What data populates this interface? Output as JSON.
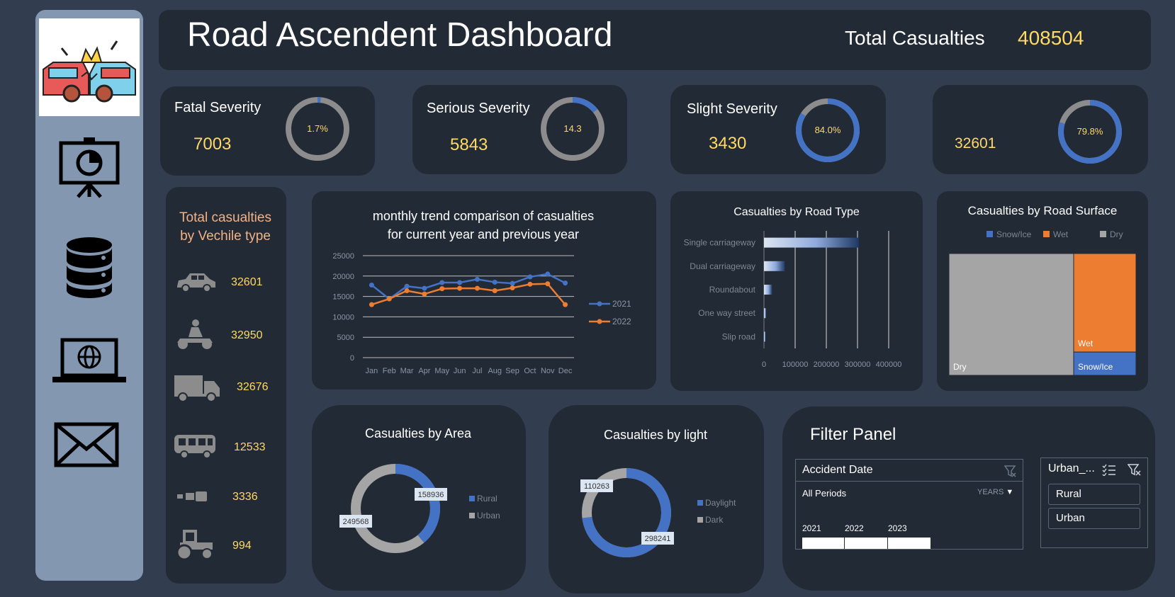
{
  "header": {
    "title": "Road Ascendent Dashboard",
    "total_label": "Total Casualties",
    "total_value": "408504"
  },
  "sidebar": {
    "icons": [
      "car-crash-logo-icon",
      "presentation-chart-icon",
      "database-icon",
      "laptop-globe-icon",
      "mail-icon"
    ]
  },
  "kpis": [
    {
      "label": "Fatal Severity",
      "value": "7003",
      "pct_label": "1.7%",
      "pct": 1.7
    },
    {
      "label": "Serious Severity",
      "value": "5843",
      "pct_label": "14.3",
      "pct": 14.3
    },
    {
      "label": "Slight Severity",
      "value": "3430",
      "pct_label": "84.0%",
      "pct": 84.0
    },
    {
      "label": "",
      "value": "32601",
      "pct_label": "79.8%",
      "pct": 79.8
    }
  ],
  "vehicles": {
    "title_line1": "Total casualties",
    "title_line2": "by Vechile type",
    "items": [
      {
        "icon": "car-icon",
        "value": "32601"
      },
      {
        "icon": "motorcycle-icon",
        "value": "32950"
      },
      {
        "icon": "truck-icon",
        "value": "32676"
      },
      {
        "icon": "bus-icon",
        "value": "12533"
      },
      {
        "icon": "other-vehicle-icon",
        "value": "3336"
      },
      {
        "icon": "tractor-icon",
        "value": "994"
      }
    ]
  },
  "colors": {
    "blue": "#4472c4",
    "orange": "#ed7d31",
    "grey": "#a5a5a5",
    "gold": "#ffd966"
  },
  "chart_data": [
    {
      "type": "line",
      "title_line1": "monthly trend comparison of casualties",
      "title_line2": "for current year and previous year",
      "categories": [
        "Jan",
        "Feb",
        "Mar",
        "Apr",
        "May",
        "Jun",
        "Jul",
        "Aug",
        "Sep",
        "Oct",
        "Nov",
        "Dec"
      ],
      "ylim": [
        0,
        25000
      ],
      "yticks": [
        0,
        5000,
        10000,
        15000,
        20000,
        25000
      ],
      "ytick_labels": [
        "0",
        "5000",
        "10000",
        "15000",
        "20000",
        "25000"
      ],
      "legend_position": "right",
      "series": [
        {
          "name": "2021",
          "color": "#4472c4",
          "values": [
            17800,
            14400,
            17500,
            17000,
            18400,
            18400,
            19200,
            18500,
            18200,
            19800,
            20500,
            18300
          ]
        },
        {
          "name": "2022",
          "color": "#ed7d31",
          "values": [
            13000,
            14400,
            16400,
            15600,
            16900,
            17000,
            17000,
            16400,
            17100,
            18000,
            18100,
            13000
          ]
        }
      ]
    },
    {
      "type": "bar",
      "orientation": "horizontal",
      "title": "Casualties by Road Type",
      "categories": [
        "Single carriageway",
        "Dual carriageway",
        "Roundabout",
        "One way street",
        "Slip road"
      ],
      "values": [
        304000,
        67000,
        26000,
        7000,
        5000
      ],
      "xlim": [
        0,
        400000
      ],
      "xticks": [
        0,
        100000,
        200000,
        300000,
        400000
      ],
      "xtick_labels": [
        "0",
        "100000",
        "200000",
        "300000",
        "400000"
      ]
    },
    {
      "type": "treemap",
      "title": "Casualties by Road Surface",
      "legend": [
        "Snow/Ice",
        "Wet",
        "Dry"
      ],
      "legend_colors": [
        "#4472c4",
        "#ed7d31",
        "#a5a5a5"
      ],
      "labels": [
        "Dry",
        "Wet",
        "Snow/Ice"
      ],
      "values": [
        272000,
        110000,
        26000
      ]
    },
    {
      "type": "pie",
      "title": "Casualties by Area",
      "labels": [
        "Rural",
        "Urban"
      ],
      "values": [
        158936,
        249568
      ],
      "value_labels": [
        "158936",
        "249568"
      ],
      "colors": [
        "#4472c4",
        "#a5a5a5"
      ]
    },
    {
      "type": "pie",
      "title": "Casualties by light",
      "labels": [
        "Daylight",
        "Dark"
      ],
      "values": [
        298241,
        110263
      ],
      "value_labels": [
        "298241",
        "110263"
      ],
      "colors": [
        "#4472c4",
        "#a5a5a5"
      ]
    }
  ],
  "filter": {
    "title": "Filter Panel",
    "date_slicer": {
      "header": "Accident Date",
      "period": "All Periods",
      "unit": "YEARS",
      "years": [
        "2021",
        "2022",
        "2023"
      ]
    },
    "area_slicer": {
      "header": "Urban_...",
      "options": [
        "Rural",
        "Urban"
      ]
    }
  }
}
